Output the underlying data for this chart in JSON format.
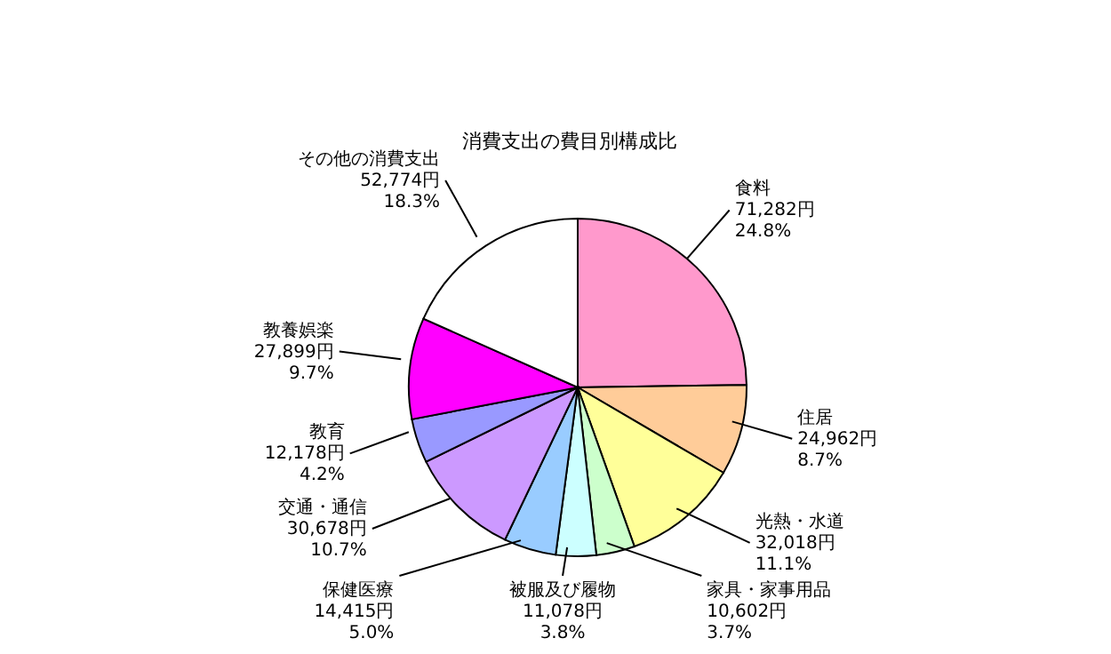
{
  "chart_data": {
    "type": "pie",
    "title": "消費支出の費目別構成比",
    "categories": [
      "食料",
      "住居",
      "光熱・水道",
      "家具・家事用品",
      "被服及び履物",
      "保健医療",
      "交通・通信",
      "教育",
      "教養娯楽",
      "その他の消費支出"
    ],
    "values": [
      71282,
      24962,
      32018,
      10602,
      11078,
      14415,
      30678,
      12178,
      27899,
      52774
    ],
    "value_labels": [
      "71,282円 24.8%",
      "24,962円 8.7%",
      "32,018円 11.1%",
      "10,602円 3.7%",
      "11,078円 3.8%",
      "14,415円 5.0%",
      "30,678円 10.7%",
      "12,178円 4.2%",
      "27,899円 9.7%",
      "52,774円 18.3%"
    ],
    "colors": [
      "#ff99cc",
      "#ffcc99",
      "#ffff99",
      "#ccffcc",
      "#ccffff",
      "#99ccff",
      "#cc99ff",
      "#9999ff",
      "#ff00ff",
      "#ffffff"
    ]
  }
}
